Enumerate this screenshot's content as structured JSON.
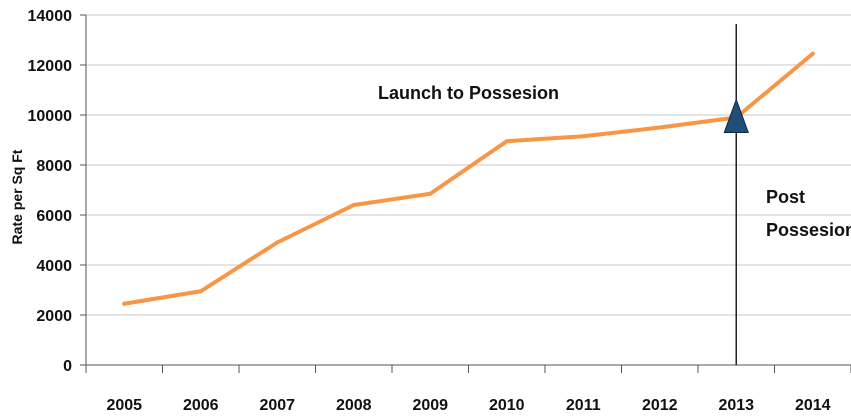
{
  "chart_data": {
    "type": "line",
    "title": "",
    "xlabel": "",
    "ylabel": "Rate per Sq Ft",
    "categories": [
      "2005",
      "2006",
      "2007",
      "2008",
      "2009",
      "2010",
      "2011",
      "2012",
      "2013",
      "2014"
    ],
    "series": [
      {
        "values": [
          2450,
          2950,
          4900,
          6400,
          6850,
          8950,
          9150,
          9500,
          9900,
          12450
        ]
      }
    ],
    "ylim": [
      0,
      14000
    ],
    "yticks": [
      "0",
      "2000",
      "4000",
      "6000",
      "8000",
      "10000",
      "12000",
      "14000"
    ],
    "grid": true,
    "annotations": {
      "launch": "Launch to Possesion",
      "post_line1": "Post",
      "post_line2": "Possesion",
      "marker_category": "2013"
    },
    "colors": {
      "line": "#F79646",
      "marker": "#1F4E79",
      "grid": "#c8c8c8"
    }
  }
}
